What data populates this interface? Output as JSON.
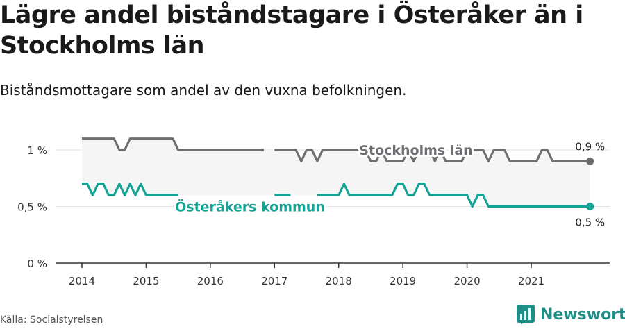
{
  "title": "Lägre andel biståndstagare i Österåker än i Stockholms län",
  "subtitle": "Biståndsmottagare som andel av den vuxna befolkningen.",
  "source": "Källa: Socialstyrelsen",
  "brand": {
    "name": "Newsworthy",
    "icon": "bar-chart-logo-icon",
    "color": "#1f8e86"
  },
  "chart_data": {
    "type": "line",
    "yticks": [
      {
        "value": 0,
        "label": "0 %"
      },
      {
        "value": 0.5,
        "label": "0,5 %"
      },
      {
        "value": 1,
        "label": "1 %"
      }
    ],
    "xticks": [
      2014,
      2015,
      2016,
      2017,
      2018,
      2019,
      2020,
      2021
    ],
    "ylim": [
      0,
      1.25
    ],
    "xlim": [
      2013.6,
      2022.2
    ],
    "series": [
      {
        "name": "Stockholms län",
        "color": "#6e6e73",
        "end_label": "0,9 %",
        "points": [
          [
            2014.0,
            1.1
          ],
          [
            2014.083,
            1.1
          ],
          [
            2014.167,
            1.1
          ],
          [
            2014.25,
            1.1
          ],
          [
            2014.333,
            1.1
          ],
          [
            2014.417,
            1.1
          ],
          [
            2014.5,
            1.1
          ],
          [
            2014.583,
            1.0
          ],
          [
            2014.667,
            1.0
          ],
          [
            2014.75,
            1.1
          ],
          [
            2014.833,
            1.1
          ],
          [
            2014.917,
            1.1
          ],
          [
            2015.0,
            1.1
          ],
          [
            2015.083,
            1.1
          ],
          [
            2015.167,
            1.1
          ],
          [
            2015.25,
            1.1
          ],
          [
            2015.333,
            1.1
          ],
          [
            2015.417,
            1.1
          ],
          [
            2015.5,
            1.0
          ],
          [
            2015.583,
            1.0
          ],
          [
            2015.667,
            1.0
          ],
          [
            2015.75,
            1.0
          ],
          [
            2015.833,
            1.0
          ],
          [
            2015.917,
            1.0
          ],
          [
            2016.0,
            1.0
          ],
          [
            2016.083,
            1.0
          ],
          [
            2016.167,
            1.0
          ],
          [
            2016.25,
            1.0
          ],
          [
            2016.333,
            1.0
          ],
          [
            2016.417,
            1.0
          ],
          [
            2016.5,
            1.0
          ],
          [
            2016.583,
            1.0
          ],
          [
            2016.667,
            1.0
          ],
          [
            2016.75,
            1.0
          ],
          [
            2016.833,
            1.0
          ],
          null,
          [
            2017.0,
            1.0
          ],
          [
            2017.083,
            1.0
          ],
          [
            2017.167,
            1.0
          ],
          [
            2017.25,
            1.0
          ],
          [
            2017.333,
            1.0
          ],
          [
            2017.417,
            0.9
          ],
          [
            2017.5,
            1.0
          ],
          [
            2017.583,
            1.0
          ],
          [
            2017.667,
            0.9
          ],
          [
            2017.75,
            1.0
          ],
          [
            2017.833,
            1.0
          ],
          [
            2017.917,
            1.0
          ],
          [
            2018.0,
            1.0
          ],
          [
            2018.083,
            1.0
          ],
          [
            2018.167,
            1.0
          ],
          [
            2018.25,
            1.0
          ],
          [
            2018.333,
            1.0
          ],
          [
            2018.417,
            1.0
          ],
          [
            2018.5,
            0.9
          ],
          [
            2018.583,
            0.9
          ],
          [
            2018.667,
            1.0
          ],
          [
            2018.75,
            0.9
          ],
          [
            2018.833,
            0.9
          ],
          [
            2018.917,
            0.9
          ],
          [
            2019.0,
            0.9
          ],
          [
            2019.083,
            1.0
          ],
          [
            2019.167,
            0.9
          ],
          [
            2019.25,
            1.0
          ],
          [
            2019.333,
            1.0
          ],
          [
            2019.417,
            1.0
          ],
          [
            2019.5,
            0.9
          ],
          [
            2019.583,
            1.0
          ],
          [
            2019.667,
            0.9
          ],
          [
            2019.75,
            0.9
          ],
          [
            2019.833,
            0.9
          ],
          [
            2019.917,
            0.9
          ],
          [
            2020.0,
            1.0
          ],
          [
            2020.083,
            1.0
          ],
          [
            2020.167,
            1.0
          ],
          [
            2020.25,
            1.0
          ],
          [
            2020.333,
            0.9
          ],
          [
            2020.417,
            1.0
          ],
          [
            2020.5,
            1.0
          ],
          [
            2020.583,
            1.0
          ],
          [
            2020.667,
            0.9
          ],
          [
            2020.75,
            0.9
          ],
          [
            2020.833,
            0.9
          ],
          [
            2020.917,
            0.9
          ],
          [
            2021.0,
            0.9
          ],
          [
            2021.083,
            0.9
          ],
          [
            2021.167,
            1.0
          ],
          [
            2021.25,
            1.0
          ],
          [
            2021.333,
            0.9
          ],
          [
            2021.417,
            0.9
          ],
          [
            2021.5,
            0.9
          ],
          [
            2021.583,
            0.9
          ],
          [
            2021.667,
            0.9
          ],
          [
            2021.75,
            0.9
          ],
          [
            2021.833,
            0.9
          ],
          [
            2021.917,
            0.9
          ]
        ]
      },
      {
        "name": "Österåkers kommun",
        "color": "#14a394",
        "end_label": "0,5 %",
        "points": [
          [
            2014.0,
            0.7
          ],
          [
            2014.083,
            0.7
          ],
          [
            2014.167,
            0.6
          ],
          [
            2014.25,
            0.7
          ],
          [
            2014.333,
            0.7
          ],
          [
            2014.417,
            0.6
          ],
          [
            2014.5,
            0.6
          ],
          [
            2014.583,
            0.7
          ],
          [
            2014.667,
            0.6
          ],
          [
            2014.75,
            0.7
          ],
          [
            2014.833,
            0.6
          ],
          [
            2014.917,
            0.7
          ],
          [
            2015.0,
            0.6
          ],
          [
            2015.083,
            0.6
          ],
          [
            2015.167,
            0.6
          ],
          [
            2015.25,
            0.6
          ],
          [
            2015.333,
            0.6
          ],
          [
            2015.417,
            0.6
          ],
          [
            2015.5,
            0.6
          ],
          null,
          null,
          null,
          null,
          null,
          null,
          null,
          null,
          null,
          null,
          null,
          null,
          null,
          null,
          null,
          null,
          null,
          [
            2017.0,
            0.6
          ],
          [
            2017.083,
            0.6
          ],
          [
            2017.167,
            0.6
          ],
          [
            2017.25,
            0.6
          ],
          null,
          null,
          null,
          [
            2017.667,
            0.6
          ],
          [
            2017.75,
            0.6
          ],
          [
            2017.833,
            0.6
          ],
          [
            2017.917,
            0.6
          ],
          [
            2018.0,
            0.6
          ],
          [
            2018.083,
            0.7
          ],
          [
            2018.167,
            0.6
          ],
          [
            2018.25,
            0.6
          ],
          [
            2018.333,
            0.6
          ],
          [
            2018.417,
            0.6
          ],
          [
            2018.5,
            0.6
          ],
          [
            2018.583,
            0.6
          ],
          [
            2018.667,
            0.6
          ],
          [
            2018.75,
            0.6
          ],
          [
            2018.833,
            0.6
          ],
          [
            2018.917,
            0.7
          ],
          [
            2019.0,
            0.7
          ],
          [
            2019.083,
            0.6
          ],
          [
            2019.167,
            0.6
          ],
          [
            2019.25,
            0.7
          ],
          [
            2019.333,
            0.7
          ],
          [
            2019.417,
            0.6
          ],
          [
            2019.5,
            0.6
          ],
          [
            2019.583,
            0.6
          ],
          [
            2019.667,
            0.6
          ],
          [
            2019.75,
            0.6
          ],
          [
            2019.833,
            0.6
          ],
          [
            2019.917,
            0.6
          ],
          [
            2020.0,
            0.6
          ],
          [
            2020.083,
            0.5
          ],
          [
            2020.167,
            0.6
          ],
          [
            2020.25,
            0.6
          ],
          [
            2020.333,
            0.5
          ],
          [
            2020.417,
            0.5
          ],
          [
            2020.5,
            0.5
          ],
          [
            2020.583,
            0.5
          ],
          [
            2020.667,
            0.5
          ],
          [
            2020.75,
            0.5
          ],
          [
            2020.833,
            0.5
          ],
          [
            2020.917,
            0.5
          ],
          [
            2021.0,
            0.5
          ],
          [
            2021.083,
            0.5
          ],
          [
            2021.167,
            0.5
          ],
          [
            2021.25,
            0.5
          ],
          [
            2021.333,
            0.5
          ],
          [
            2021.417,
            0.5
          ],
          [
            2021.5,
            0.5
          ],
          [
            2021.583,
            0.5
          ],
          [
            2021.667,
            0.5
          ],
          [
            2021.75,
            0.5
          ],
          [
            2021.833,
            0.5
          ],
          [
            2021.917,
            0.5
          ]
        ]
      }
    ]
  }
}
